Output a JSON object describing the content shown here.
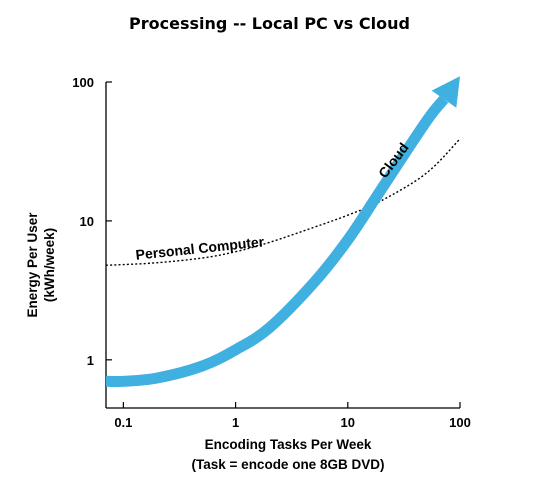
{
  "chart_data": {
    "type": "line",
    "title": "Processing -- Local PC vs Cloud",
    "xlabel": "Encoding Tasks Per Week",
    "xlabel_sub": "(Task = encode one 8GB DVD)",
    "ylabel": "Energy Per User",
    "ylabel_sub": "(kWh/week)",
    "x_scale": "log",
    "y_scale": "log",
    "xlim": [
      0.07,
      100
    ],
    "ylim": [
      0.45,
      100
    ],
    "x_ticks": [
      0.1,
      1,
      10,
      100
    ],
    "x_tick_labels": [
      "0.1",
      "1",
      "10",
      "100"
    ],
    "y_ticks": [
      1,
      10,
      100
    ],
    "y_tick_labels": [
      "1",
      "10",
      "100"
    ],
    "grid": false,
    "legend": "none",
    "series": [
      {
        "name": "Personal Computer",
        "style": "dotted",
        "color": "#000000",
        "x": [
          0.07,
          0.1,
          0.2,
          0.5,
          1,
          2,
          5,
          10,
          20,
          50,
          100
        ],
        "y": [
          4.8,
          4.85,
          5.0,
          5.4,
          6.0,
          7.0,
          9.0,
          11.0,
          14.0,
          22.0,
          39.0
        ]
      },
      {
        "name": "Cloud",
        "style": "thick-arrow",
        "color": "#3fb0e0",
        "x": [
          0.07,
          0.1,
          0.2,
          0.5,
          1,
          2,
          5,
          10,
          20,
          50,
          100
        ],
        "y": [
          0.7,
          0.7,
          0.74,
          0.9,
          1.18,
          1.7,
          3.6,
          7.3,
          17,
          52,
          110
        ]
      }
    ]
  }
}
